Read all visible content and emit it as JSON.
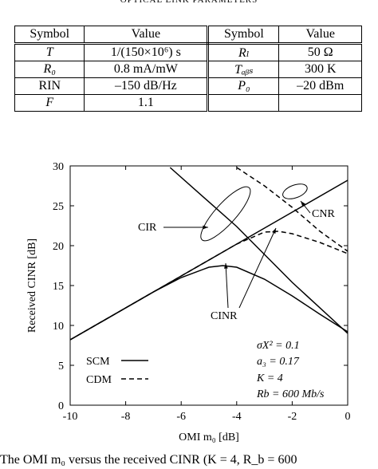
{
  "table": {
    "title": "OPTICAL LINK PARAMETERS",
    "headers": [
      "Symbol",
      "Value",
      "Symbol",
      "Value"
    ],
    "rows": [
      [
        "T",
        "1/(150×10⁶) s",
        "Rₗ",
        "50 Ω"
      ],
      [
        "R₀",
        "0.8 mA/mW",
        "Tₐᵦₛ",
        "300 K"
      ],
      [
        "RIN",
        "–150 dB/Hz",
        "P₀",
        "–20 dBm"
      ],
      [
        "F",
        "1.1",
        "",
        ""
      ]
    ]
  },
  "chart_data": {
    "type": "line",
    "xlabel": "OMI m₀ [dB]",
    "ylabel": "Received CINR [dB]",
    "xlim": [
      -10,
      0
    ],
    "ylim": [
      0,
      30
    ],
    "x_ticks": [
      -10,
      -8,
      -6,
      -4,
      -2,
      0
    ],
    "y_ticks": [
      0,
      5,
      10,
      15,
      20,
      25,
      30
    ],
    "series": [
      {
        "name": "SCM",
        "style": "solid",
        "x": [
          -10,
          -9,
          -8,
          -7,
          -6,
          -5,
          -4.5,
          -4,
          -3,
          -2,
          -1,
          0
        ],
        "y": [
          8.2,
          10.2,
          12.2,
          14.2,
          16.0,
          17.3,
          17.5,
          17.3,
          15.8,
          13.7,
          11.4,
          9.2
        ]
      },
      {
        "name": "CDM",
        "style": "dashed",
        "x": [
          -10,
          -9,
          -8,
          -7,
          -6,
          -5,
          -4,
          -3,
          -2.5,
          -2,
          -1,
          0
        ],
        "y": [
          8.2,
          10.2,
          12.2,
          14.2,
          16.2,
          18.2,
          20.2,
          21.7,
          21.8,
          21.5,
          20.4,
          19.0
        ]
      },
      {
        "name": "CNR",
        "style": "dashed",
        "x": [
          -4,
          -3,
          -2,
          -1,
          0
        ],
        "y": [
          29.8,
          27.5,
          24.8,
          21.8,
          19.3
        ]
      },
      {
        "name": "CIR",
        "style": "solid",
        "x": [
          -10,
          -8,
          -6,
          -4,
          -2,
          0
        ],
        "y": [
          8.2,
          12.2,
          16.2,
          20.2,
          24.2,
          28.2
        ]
      },
      {
        "name": "",
        "style": "solid",
        "x": [
          -6.4,
          -4,
          -2,
          0
        ],
        "y": [
          29.8,
          22.4,
          15.4,
          9.0
        ]
      }
    ],
    "annotations": [
      "CIR",
      "CNR",
      "CINR"
    ],
    "params": [
      "σX² = 0.1",
      "a₃ = 0.17",
      "K = 4",
      "Rb = 600 Mb/s"
    ],
    "legend": {
      "position": "bottom-left",
      "entries": [
        "SCM",
        "CDM"
      ]
    }
  },
  "caption": "The OMI m₀ versus the received CINR (K = 4, R_b = 600"
}
